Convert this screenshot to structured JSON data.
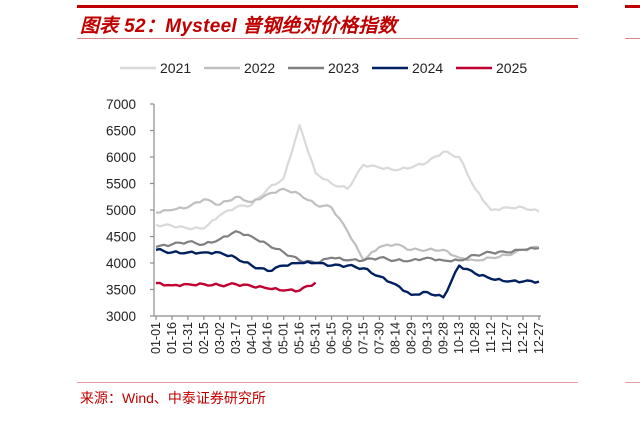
{
  "figure": {
    "title": "图表 52：Mysteel 普钢绝对价格指数",
    "source": "来源：Wind、中泰证券研究所"
  },
  "chart_data": {
    "type": "line",
    "title": "Mysteel 普钢绝对价格指数",
    "xlabel": "",
    "ylabel": "",
    "ylim": [
      3000,
      7000
    ],
    "yticks": [
      3000,
      3500,
      4000,
      4500,
      5000,
      5500,
      6000,
      6500,
      7000
    ],
    "grid": false,
    "legend_position": "top",
    "categories": [
      "01-01",
      "01-16",
      "01-31",
      "02-15",
      "03-02",
      "03-17",
      "04-01",
      "04-16",
      "05-01",
      "05-16",
      "05-31",
      "06-15",
      "06-30",
      "07-15",
      "07-30",
      "08-14",
      "08-29",
      "09-13",
      "09-28",
      "10-13",
      "10-28",
      "11-12",
      "11-27",
      "12-12",
      "12-27"
    ],
    "series": [
      {
        "name": "2021",
        "color": "#d9d9d9",
        "values": [
          4720,
          4700,
          4650,
          4650,
          4900,
          5050,
          5100,
          5400,
          5600,
          6600,
          5700,
          5500,
          5400,
          5850,
          5800,
          5750,
          5800,
          5900,
          6100,
          6000,
          5400,
          5000,
          5050,
          5050,
          4970
        ]
      },
      {
        "name": "2022",
        "color": "#bfbfbf",
        "values": [
          4950,
          5000,
          5050,
          5200,
          5100,
          5250,
          5150,
          5300,
          5400,
          5300,
          5100,
          5050,
          4600,
          4050,
          4300,
          4350,
          4250,
          4250,
          4250,
          4100,
          4050,
          4100,
          4150,
          4250,
          4300
        ]
      },
      {
        "name": "2023",
        "color": "#808080",
        "values": [
          4300,
          4350,
          4400,
          4350,
          4450,
          4600,
          4500,
          4350,
          4200,
          4050,
          4000,
          4100,
          4050,
          4050,
          4100,
          4050,
          4050,
          4100,
          4050,
          4050,
          4150,
          4200,
          4200,
          4250,
          4280
        ]
      },
      {
        "name": "2024",
        "color": "#002060",
        "values": [
          4250,
          4200,
          4200,
          4200,
          4200,
          4100,
          3950,
          3850,
          3950,
          4000,
          4000,
          3950,
          3950,
          3900,
          3750,
          3600,
          3400,
          3450,
          3350,
          3950,
          3800,
          3700,
          3650,
          3650,
          3650
        ]
      },
      {
        "name": "2025",
        "color": "#c00030",
        "values": [
          3620,
          3580,
          3600,
          3600,
          3580,
          3600,
          3560,
          3520,
          3480,
          3480,
          3630,
          null,
          null,
          null,
          null,
          null,
          null,
          null,
          null,
          null,
          null,
          null,
          null,
          null,
          null
        ]
      }
    ]
  }
}
